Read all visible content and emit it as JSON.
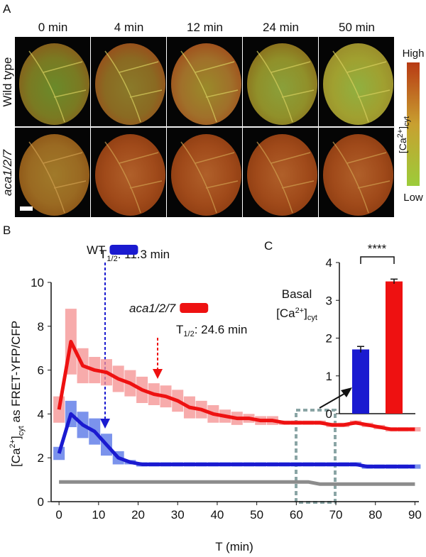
{
  "panel_a": {
    "label": "A",
    "times": [
      "0 min",
      "4 min",
      "12 min",
      "24 min",
      "50 min"
    ],
    "rows": [
      "Wild type",
      "aca1/2/7"
    ],
    "colorbar": {
      "high": "High",
      "low": "Low",
      "title": "[Ca",
      "title_sup": "2+",
      "title_end": "]",
      "title_sub": "cyt"
    }
  },
  "chart_data": [
    {
      "type": "line",
      "panel": "B",
      "x_label": "T (min)",
      "y_label": {
        "a": "[Ca",
        "sup": "2+",
        "b": "]",
        "sub": "cyt",
        "c": " as FRET-YFP/CFP"
      },
      "x": [
        0,
        3,
        6,
        9,
        12,
        15,
        18,
        21,
        24,
        27,
        30,
        33,
        36,
        39,
        42,
        45,
        48,
        51,
        54,
        57,
        60,
        63,
        66,
        69,
        72,
        75,
        78,
        81,
        84,
        87,
        90
      ],
      "series": [
        {
          "name": "WT",
          "color": "#1a1ad0",
          "band_color": "#4f6fe6",
          "values": [
            2.2,
            4.0,
            3.5,
            3.2,
            2.6,
            2.0,
            1.8,
            1.7,
            1.7,
            1.7,
            1.7,
            1.7,
            1.7,
            1.7,
            1.7,
            1.7,
            1.7,
            1.7,
            1.7,
            1.7,
            1.7,
            1.7,
            1.7,
            1.7,
            1.7,
            1.7,
            1.6,
            1.6,
            1.6,
            1.6,
            1.6
          ],
          "errors": [
            0.3,
            0.6,
            0.6,
            0.6,
            0.5,
            0.3,
            0.1,
            0.1,
            0.1,
            0.1,
            0.1,
            0.1,
            0.1,
            0.1,
            0.1,
            0.1,
            0.1,
            0.1,
            0.1,
            0.1,
            0.1,
            0.1,
            0.1,
            0.1,
            0.1,
            0.1,
            0.1,
            0.1,
            0.1,
            0.1,
            0.1
          ]
        },
        {
          "name": "aca1/2/7",
          "color": "#ee1111",
          "band_color": "#f59090",
          "values": [
            4.2,
            7.3,
            6.2,
            6.0,
            5.9,
            5.6,
            5.4,
            5.1,
            4.9,
            4.8,
            4.6,
            4.3,
            4.2,
            4.0,
            3.9,
            3.8,
            3.8,
            3.7,
            3.7,
            3.6,
            3.6,
            3.6,
            3.6,
            3.5,
            3.5,
            3.6,
            3.5,
            3.4,
            3.3,
            3.3,
            3.3
          ],
          "errors": [
            0.6,
            1.5,
            0.8,
            0.6,
            0.6,
            0.6,
            0.6,
            0.6,
            0.5,
            0.5,
            0.5,
            0.5,
            0.4,
            0.4,
            0.3,
            0.3,
            0.2,
            0.2,
            0.2,
            0.1,
            0.1,
            0.1,
            0.1,
            0.1,
            0.1,
            0.1,
            0.1,
            0.1,
            0.1,
            0.1,
            0.1
          ]
        },
        {
          "color": "#8c8c8c",
          "values": [
            0.9,
            0.9,
            0.9,
            0.9,
            0.9,
            0.9,
            0.9,
            0.9,
            0.9,
            0.9,
            0.9,
            0.9,
            0.9,
            0.9,
            0.9,
            0.9,
            0.9,
            0.9,
            0.9,
            0.9,
            0.9,
            0.9,
            0.8,
            0.8,
            0.8,
            0.8,
            0.8,
            0.8,
            0.8,
            0.8,
            0.8
          ]
        }
      ],
      "annotations": [
        {
          "a": "T",
          "sub": "1/2",
          "b": ": 11.3 min"
        },
        {
          "a": "T",
          "sub": "1/2",
          "b": ": 24.6 min"
        }
      ],
      "xlim": [
        -2,
        91
      ],
      "xticks": [
        0,
        10,
        20,
        30,
        40,
        50,
        60,
        70,
        80,
        90
      ],
      "ylim": [
        0,
        10
      ],
      "yticks": [
        0,
        2,
        4,
        6,
        8,
        10
      ]
    },
    {
      "type": "bar",
      "panel": "C",
      "title": "Basal",
      "subtitle": {
        "a": "[Ca",
        "sup": "2+",
        "b": "]",
        "sub": "cyt"
      },
      "categories": [
        null,
        null
      ],
      "values": [
        1.7,
        3.5
      ],
      "errors": [
        0.08,
        0.06
      ],
      "colors": [
        "#1a1ad0",
        "#ee1111"
      ],
      "annotation": "****",
      "ylim": [
        0,
        4
      ],
      "yticks": [
        0,
        1,
        2,
        3,
        4
      ]
    }
  ]
}
